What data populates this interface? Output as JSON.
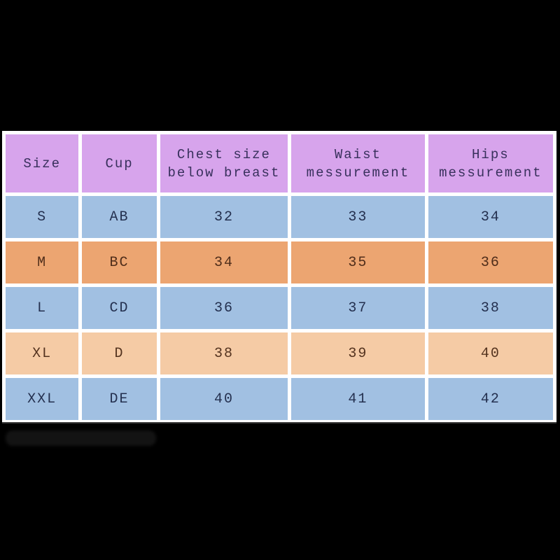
{
  "chart_data": {
    "type": "table",
    "columns": [
      "Size",
      "Cup",
      "Chest size below breast",
      "Waist messurement",
      "Hips messurement"
    ],
    "rows": [
      [
        "S",
        "AB",
        32,
        33,
        34
      ],
      [
        "M",
        "BC",
        34,
        35,
        36
      ],
      [
        "L",
        "CD",
        36,
        37,
        38
      ],
      [
        "XL",
        "D",
        38,
        39,
        40
      ],
      [
        "XXL",
        "DE",
        40,
        41,
        42
      ]
    ]
  },
  "table": {
    "headers": [
      "Size",
      "Cup",
      "Chest size\nbelow breast",
      "Waist\nmessurement",
      "Hips\nmessurement"
    ],
    "rows": [
      {
        "size": "S",
        "cup": "AB",
        "chest": "32",
        "waist": "33",
        "hips": "34"
      },
      {
        "size": "M",
        "cup": "BC",
        "chest": "34",
        "waist": "35",
        "hips": "36"
      },
      {
        "size": "L",
        "cup": "CD",
        "chest": "36",
        "waist": "37",
        "hips": "38"
      },
      {
        "size": "XL",
        "cup": "D",
        "chest": "38",
        "waist": "39",
        "hips": "40"
      },
      {
        "size": "XXL",
        "cup": "DE",
        "chest": "40",
        "waist": "41",
        "hips": "42"
      }
    ]
  },
  "colors": {
    "letterbox_black": "#000000",
    "panel_white": "#ffffff",
    "header_purple": "#d7a4ec",
    "row_blue": "#a1c0e2",
    "row_orange": "#eca571",
    "row_peach": "#f5cba5",
    "header_text": "#38305c",
    "blue_row_text": "#24304f",
    "orange_row_text": "#4f2d1a",
    "peach_row_text": "#54331f"
  }
}
